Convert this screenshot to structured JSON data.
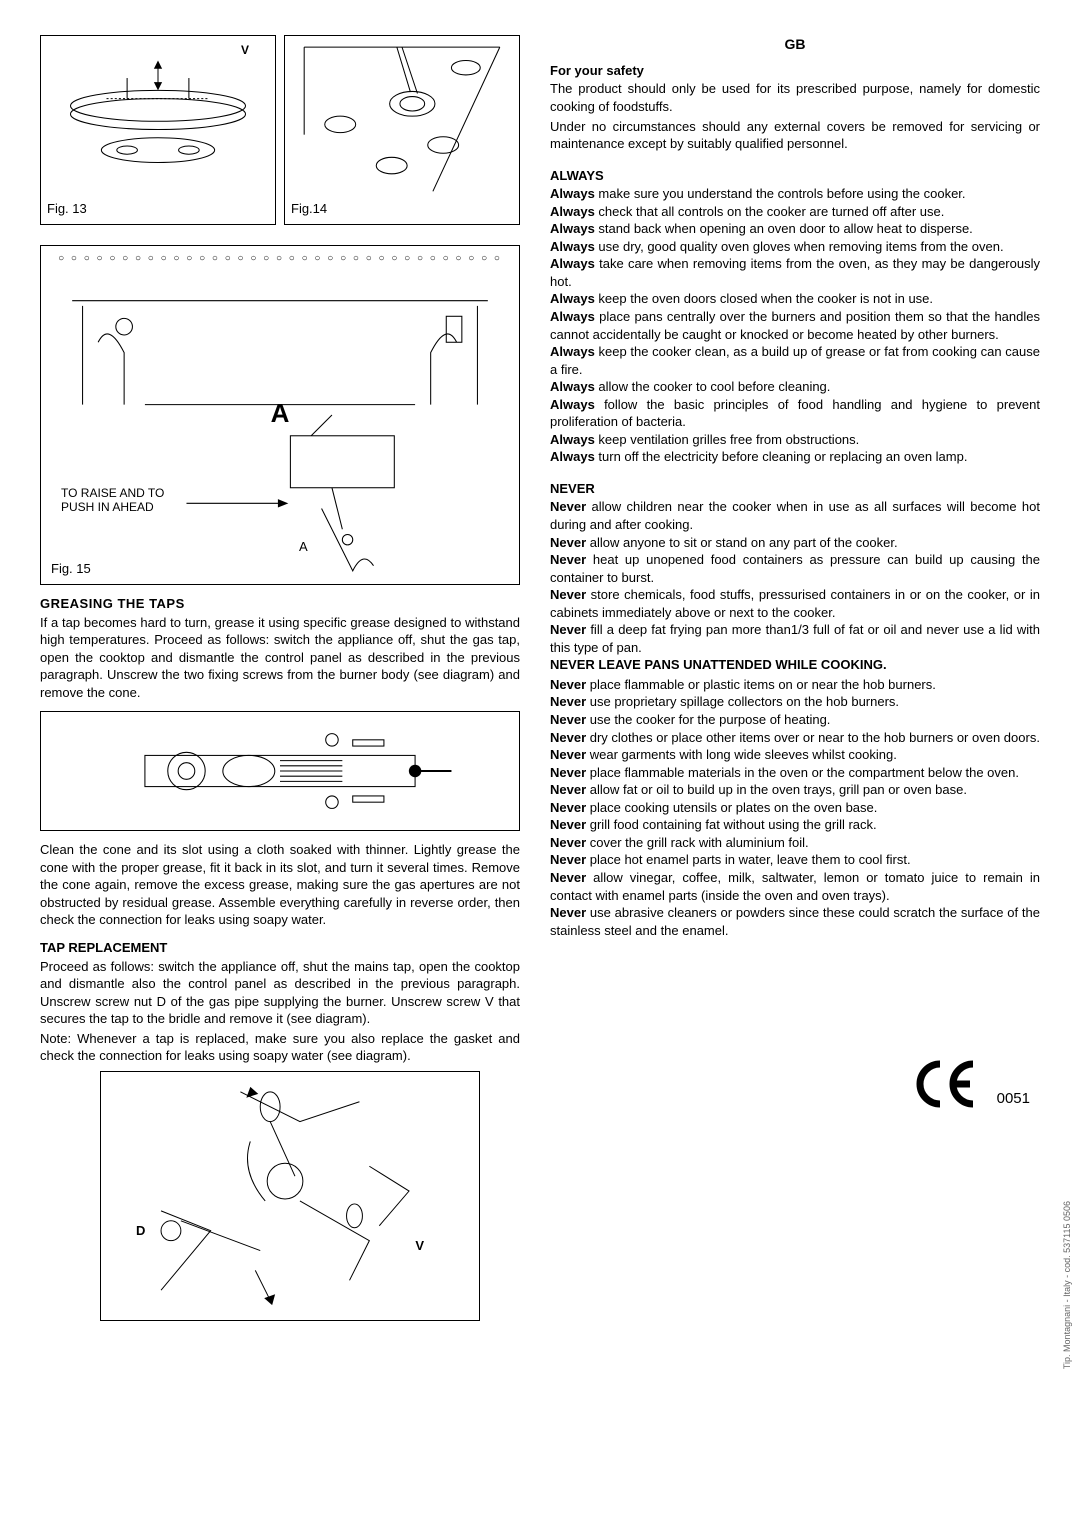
{
  "country_code": "GB",
  "figures": {
    "fig13": "Fig. 13",
    "fig13_v": "V",
    "fig14": "Fig.14",
    "fig15": "Fig. 15",
    "fig15_big": "A",
    "fig15_a": "A",
    "fig15_raise": "TO RAISE AND TO\nPUSH IN AHEAD",
    "bottom_d": "D",
    "bottom_v": "V"
  },
  "left": {
    "h1": "GREASING THE TAPS",
    "p1": "If a tap becomes hard to turn, grease it using specific grease designed to withstand high temperatures. Proceed as follows: switch the appliance off, shut the gas tap, open the cooktop and dismantle the control panel as described in the previous paragraph. Unscrew the two fixing screws from the burner body (see diagram) and remove the cone.",
    "p2": "Clean the cone and its slot using a cloth soaked with thinner. Lightly grease the cone with the proper grease, fit it back in its slot, and turn it several times. Remove the cone again, remove the excess grease, making sure the gas apertures are not obstructed by residual grease. Assemble everything carefully in reverse order, then check the connection for leaks using soapy water.",
    "h2": "TAP REPLACEMENT",
    "p3": "Proceed as follows: switch the appliance off, shut the mains tap, open the cooktop and dismantle also the control panel as described in the previous paragraph. Unscrew screw nut D of the gas pipe supplying the burner. Unscrew screw V that secures the tap to the bridle and remove it (see diagram).",
    "p4": "Note: Whenever a tap is replaced, make sure you also replace the gasket and check the connection for leaks using soapy water (see diagram)."
  },
  "right": {
    "h_safety": "For your safety",
    "safety1": "The product should only be used for its prescribed purpose, namely for domestic cooking of foodstuffs.",
    "safety2": "Under no circumstances should any external covers be removed for servicing or maintenance except by suitably qualified personnel.",
    "h_always": "ALWAYS",
    "always": [
      {
        "b": "Always",
        "t": " make sure you understand the controls before using the cooker."
      },
      {
        "b": "Always",
        "t": " check that all controls on the cooker are turned off after use."
      },
      {
        "b": "Always",
        "t": " stand back when opening an oven door to allow heat to disperse."
      },
      {
        "b": "Always",
        "t": " use dry, good quality oven gloves when removing items from the oven."
      },
      {
        "b": "Always",
        "t": " take care when removing items from the oven, as they may be dangerously hot."
      },
      {
        "b": "Always",
        "t": " keep the oven doors closed when the cooker is not in use."
      },
      {
        "b": "Always",
        "t": " place pans centrally over the burners and position them so that the handles cannot accidentally be caught or knocked or become heated by other burners."
      },
      {
        "b": "Always",
        "t": " keep the cooker clean, as a build up of grease or fat from cooking can cause a fire."
      },
      {
        "b": "Always",
        "t": " allow the cooker to cool before cleaning."
      },
      {
        "b": "Always",
        "t": " follow the basic principles of food handling and hygiene to prevent proliferation of bacteria."
      },
      {
        "b": "Always",
        "t": " keep ventilation grilles free from obstructions."
      },
      {
        "b": "Always",
        "t": " turn off the electricity before cleaning or replacing an oven lamp."
      }
    ],
    "h_never": "NEVER",
    "never1": [
      {
        "b": "Never",
        "t": " allow children near the cooker when in use as all surfaces will become hot during and after cooking."
      },
      {
        "b": "Never",
        "t": " allow anyone to sit or stand on any part of the cooker."
      },
      {
        "b": "Never",
        "t": " heat up unopened food containers as pressure can build up causing the container to burst."
      },
      {
        "b": "Never",
        "t": " store chemicals, food stuffs, pressurised containers in or on the cooker, or in cabinets immediately above or next to the cooker."
      },
      {
        "b": "Never",
        "t": " fill a deep fat frying pan more than1/3 full of fat or oil and never use a lid with this type of pan."
      }
    ],
    "never_bold": "NEVER LEAVE PANS UNATTENDED WHILE COOKING.",
    "never2": [
      {
        "b": "Never",
        "t": " place flammable or plastic items on or near the hob burners."
      },
      {
        "b": "Never",
        "t": " use proprietary spillage collectors on the hob burners."
      },
      {
        "b": "Never",
        "t": " use the cooker for the purpose of heating."
      },
      {
        "b": "Never",
        "t": " dry clothes or place other items over or near to the hob burners or oven doors."
      },
      {
        "b": "Never",
        "t": " wear garments with long wide sleeves whilst cooking."
      },
      {
        "b": "Never",
        "t": " place flammable materials in the oven or the compartment below the oven."
      },
      {
        "b": "Never",
        "t": " allow fat or oil to build up in the oven trays, grill pan or oven base."
      },
      {
        "b": "Never",
        "t": " place cooking utensils or plates on the oven base."
      },
      {
        "b": "Never",
        "t": " grill food containing fat without using the grill rack."
      },
      {
        "b": "Never",
        "t": " cover the grill rack with aluminium foil."
      },
      {
        "b": "Never",
        "t": " place hot enamel parts in water, leave them to cool first."
      },
      {
        "b": "Never",
        "t": " allow vinegar, coffee, milk, saltwater, lemon or tomato juice to remain in contact with enamel parts (inside the oven and oven trays)."
      },
      {
        "b": "Never",
        "t": " use abrasive cleaners or powders since these could scratch the surface of the stainless steel and the enamel."
      }
    ],
    "ce_num": "0051",
    "sidetext": "Tip. Montagnani - Italy - cod. 537115 0506"
  }
}
